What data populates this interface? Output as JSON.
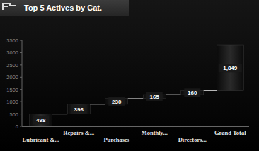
{
  "chart_data": {
    "type": "waterfall",
    "title": "Top 5 Actives by Cat.",
    "categories": [
      "Lubricant &...",
      "Repairs &...",
      "Purchases",
      "Monthly...",
      "Directors...",
      "Grand Total"
    ],
    "values": [
      498,
      396,
      230,
      165,
      160,
      1849
    ],
    "value_labels": [
      "498",
      "396",
      "230",
      "165",
      "160",
      "1,849"
    ],
    "data_labels": true,
    "color": "#2a2a2a",
    "ylim": [
      0,
      3500
    ],
    "yticks": [
      0,
      500,
      1000,
      1500,
      2000,
      2500,
      3000,
      3500
    ],
    "grid": false
  }
}
